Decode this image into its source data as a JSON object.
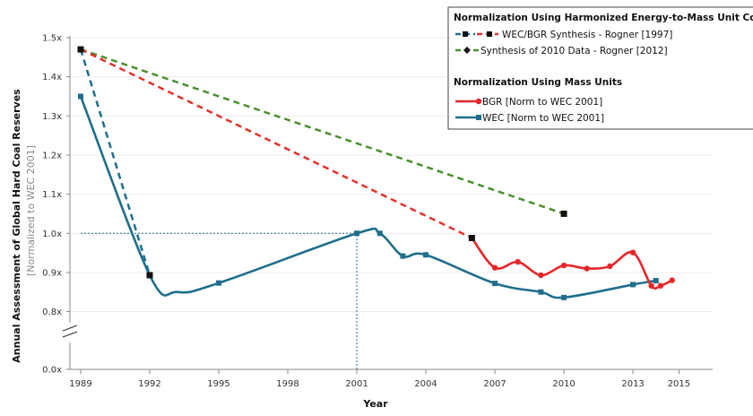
{
  "chart_data": {
    "type": "line",
    "xlabel": "Year",
    "ylabel": "Annual Assessment of Global Hard Coal Reserves",
    "ylabel_sub": "[Normalized to WEC 2001]",
    "xlim": [
      1989,
      2015
    ],
    "ylim_upper": [
      0.8,
      1.5
    ],
    "y_break": true,
    "x_ticks": [
      "1989",
      "1992",
      "1995",
      "1998",
      "2001",
      "2004",
      "2007",
      "2010",
      "2013",
      "2015"
    ],
    "y_ticks": [
      "0.0x",
      "0.8x",
      "0.9x",
      "1.0x",
      "1.1x",
      "1.2x",
      "1.3x",
      "1.4x",
      "1.5x"
    ],
    "legend_position": "top-right",
    "legend_groups": [
      {
        "title": "Normalization Using Harmonized Energy-to-Mass Unit Conversion",
        "entries": [
          0,
          1
        ]
      },
      {
        "title": "Normalization Using Mass Units",
        "entries": [
          2,
          3
        ]
      }
    ],
    "series": [
      {
        "name": "WEC/BGR Synthesis - Rogner [1997]",
        "style": "dashed-pair",
        "colors": [
          "#1f6e8c",
          "#e6302a"
        ],
        "marker": "square",
        "dash_blue": {
          "x": [
            1989,
            1992
          ],
          "y": [
            1.47,
            0.893
          ]
        },
        "dash_red": {
          "x": [
            1989,
            2006
          ],
          "y": [
            1.47,
            0.988
          ]
        }
      },
      {
        "name": "Synthesis of 2010 Data - Rogner [2012]",
        "style": "dashed",
        "color": "#4a8f2e",
        "marker": "diamond",
        "x": [
          1989,
          2010
        ],
        "y": [
          1.47,
          1.05
        ]
      },
      {
        "name": "BGR [Norm to WEC 2001]",
        "style": "solid",
        "color": "#e6262a",
        "marker": "circle",
        "x": [
          2006,
          2007,
          2008,
          2009,
          2010,
          2011,
          2012,
          2013,
          2013.8,
          2014.2,
          2014.7
        ],
        "y": [
          0.988,
          0.912,
          0.927,
          0.893,
          0.918,
          0.91,
          0.916,
          0.951,
          0.866,
          0.866,
          0.88
        ]
      },
      {
        "name": "WEC [Norm to WEC 2001]",
        "style": "solid",
        "color": "#1f6e8c",
        "marker": "square",
        "x": [
          1989,
          1992,
          1993.2,
          1995,
          2001,
          2002,
          2003,
          2004,
          2007,
          2009,
          2010,
          2013,
          2014
        ],
        "y": [
          1.35,
          0.893,
          0.85,
          0.873,
          1.0,
          1.0,
          0.942,
          0.945,
          0.872,
          0.85,
          0.836,
          0.869,
          0.879
        ],
        "markers_at": [
          1989,
          1992,
          1995,
          2001,
          2002,
          2003,
          2004,
          2007,
          2009,
          2010,
          2013,
          2014
        ]
      }
    ],
    "reference_lines": [
      {
        "orientation": "horizontal",
        "y": 1.0,
        "from_x": 1989,
        "to_x": 2001,
        "style": "dotted",
        "color": "#1f6e8c"
      },
      {
        "orientation": "vertical",
        "x": 2001,
        "from_y": 0.0,
        "to_y": 1.0,
        "style": "dotted",
        "color": "#1f6e8c"
      }
    ]
  }
}
